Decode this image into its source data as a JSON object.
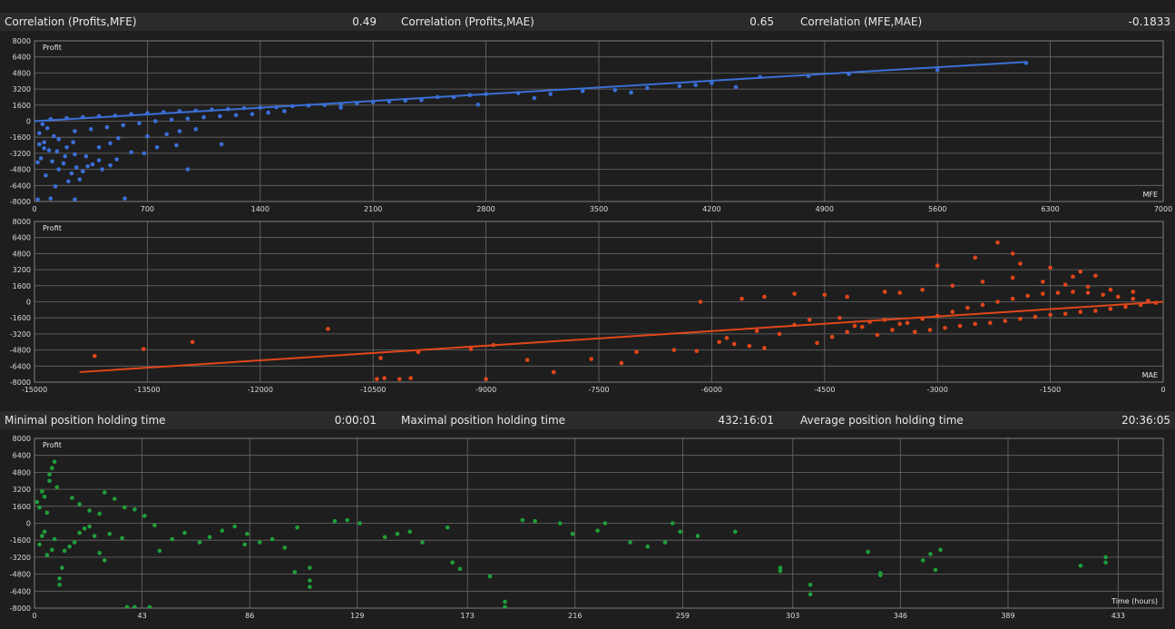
{
  "correlation_stats": [
    {
      "label": "Correlation (Profits,MFE)",
      "value": "0.49"
    },
    {
      "label": "Correlation (Profits,MAE)",
      "value": "0.65"
    },
    {
      "label": "Correlation (MFE,MAE)",
      "value": "-0.1833"
    }
  ],
  "holding_stats": [
    {
      "label": "Minimal position holding time",
      "value": "0:00:01"
    },
    {
      "label": "Maximal position holding time",
      "value": "432:16:01"
    },
    {
      "label": "Average position holding time",
      "value": "20:36:05"
    }
  ],
  "colors": {
    "mfe": "#3b6fd6",
    "mae": "#e0461a",
    "time": "#1f9e3a",
    "background": "#1e1e1e",
    "grid": "#6a6a6a"
  },
  "chart_data": [
    {
      "type": "scatter",
      "ylabel": "Profit",
      "xlabel": "MFE",
      "xlim": [
        0,
        7000
      ],
      "ylim": [
        -8000,
        8000
      ],
      "x_ticks": [
        0,
        700,
        1400,
        2100,
        2800,
        3500,
        4200,
        4900,
        5600,
        6300,
        7000
      ],
      "y_ticks": [
        -8000,
        -6400,
        -4800,
        -3200,
        -1600,
        0,
        1600,
        3200,
        4800,
        6400,
        8000
      ],
      "grid": true,
      "trend_line": [
        [
          0,
          0
        ],
        [
          6150,
          5900
        ]
      ],
      "points": [
        [
          50,
          -300
        ],
        [
          80,
          -700
        ],
        [
          30,
          -1200
        ],
        [
          120,
          -1500
        ],
        [
          60,
          -2100
        ],
        [
          150,
          -1800
        ],
        [
          200,
          -2600
        ],
        [
          90,
          -2900
        ],
        [
          250,
          -3300
        ],
        [
          320,
          -3500
        ],
        [
          40,
          -3700
        ],
        [
          110,
          -4000
        ],
        [
          180,
          -4200
        ],
        [
          260,
          -4600
        ],
        [
          360,
          -4300
        ],
        [
          150,
          -4800
        ],
        [
          230,
          -5200
        ],
        [
          300,
          -5000
        ],
        [
          420,
          -4800
        ],
        [
          510,
          -3800
        ],
        [
          600,
          -3100
        ],
        [
          680,
          -3200
        ],
        [
          760,
          -2600
        ],
        [
          880,
          -2400
        ],
        [
          950,
          -4800
        ],
        [
          1160,
          -2300
        ],
        [
          20,
          -4100
        ],
        [
          70,
          -5400
        ],
        [
          130,
          -6500
        ],
        [
          210,
          -6000
        ],
        [
          280,
          -5800
        ],
        [
          330,
          -4500
        ],
        [
          100,
          -7700
        ],
        [
          20,
          -7800
        ],
        [
          560,
          -7700
        ],
        [
          250,
          -7800
        ],
        [
          400,
          -2600
        ],
        [
          470,
          -2200
        ],
        [
          520,
          -1700
        ],
        [
          700,
          -1500
        ],
        [
          820,
          -1300
        ],
        [
          900,
          -1000
        ],
        [
          1000,
          -800
        ],
        [
          30,
          -2300
        ],
        [
          60,
          -2700
        ],
        [
          140,
          -3000
        ],
        [
          190,
          -3500
        ],
        [
          240,
          -2100
        ],
        [
          400,
          -3900
        ],
        [
          470,
          -4400
        ],
        [
          100,
          200
        ],
        [
          200,
          300
        ],
        [
          300,
          400
        ],
        [
          400,
          500
        ],
        [
          500,
          550
        ],
        [
          600,
          700
        ],
        [
          700,
          800
        ],
        [
          800,
          900
        ],
        [
          900,
          1000
        ],
        [
          1000,
          1050
        ],
        [
          1100,
          1150
        ],
        [
          1200,
          1200
        ],
        [
          1300,
          1300
        ],
        [
          1400,
          1350
        ],
        [
          1500,
          1400
        ],
        [
          1600,
          1500
        ],
        [
          1700,
          1550
        ],
        [
          1800,
          1600
        ],
        [
          1900,
          1700
        ],
        [
          2000,
          1800
        ],
        [
          2100,
          1900
        ],
        [
          2200,
          1950
        ],
        [
          2300,
          2050
        ],
        [
          2400,
          2100
        ],
        [
          2600,
          2400
        ],
        [
          2700,
          2600
        ],
        [
          2800,
          2700
        ],
        [
          3000,
          2800
        ],
        [
          3200,
          2700
        ],
        [
          3400,
          3000
        ],
        [
          3600,
          3100
        ],
        [
          3800,
          3300
        ],
        [
          4000,
          3500
        ],
        [
          4200,
          3800
        ],
        [
          4350,
          3400
        ],
        [
          4500,
          4400
        ],
        [
          4800,
          4500
        ],
        [
          5050,
          4700
        ],
        [
          5600,
          5100
        ],
        [
          6150,
          5800
        ],
        [
          1900,
          1350
        ],
        [
          2500,
          2400
        ],
        [
          2750,
          1650
        ],
        [
          3100,
          2300
        ],
        [
          3700,
          2850
        ],
        [
          4100,
          3600
        ],
        [
          250,
          -1000
        ],
        [
          350,
          -800
        ],
        [
          450,
          -600
        ],
        [
          550,
          -400
        ],
        [
          650,
          -200
        ],
        [
          750,
          0
        ],
        [
          850,
          150
        ],
        [
          950,
          250
        ],
        [
          1050,
          400
        ],
        [
          1150,
          500
        ],
        [
          1250,
          600
        ],
        [
          1350,
          700
        ],
        [
          1450,
          850
        ],
        [
          1550,
          1000
        ]
      ]
    },
    {
      "type": "scatter",
      "ylabel": "Profit",
      "xlabel": "MAE",
      "xlim": [
        -15000,
        0
      ],
      "ylim": [
        -8000,
        8000
      ],
      "x_ticks": [
        -15000,
        -13500,
        -12000,
        -10500,
        -9000,
        -7500,
        -6000,
        -4500,
        -3000,
        -1500,
        0
      ],
      "y_ticks": [
        -8000,
        -6400,
        -4800,
        -3200,
        -1600,
        0,
        1600,
        3200,
        4800,
        6400,
        8000
      ],
      "grid": true,
      "trend_line": [
        [
          -14400,
          -7000
        ],
        [
          0,
          0
        ]
      ],
      "points": [
        [
          -14200,
          -5400
        ],
        [
          -13550,
          -4700
        ],
        [
          -12900,
          -4000
        ],
        [
          -11100,
          -2700
        ],
        [
          -10450,
          -7700
        ],
        [
          -10350,
          -7600
        ],
        [
          -10150,
          -7700
        ],
        [
          -10000,
          -7600
        ],
        [
          -10400,
          -5600
        ],
        [
          -9900,
          -5000
        ],
        [
          -9200,
          -4700
        ],
        [
          -8900,
          -4300
        ],
        [
          -9000,
          -7700
        ],
        [
          -8450,
          -5800
        ],
        [
          -8100,
          -7000
        ],
        [
          -7600,
          -5700
        ],
        [
          -7200,
          -6100
        ],
        [
          -7000,
          -5000
        ],
        [
          -6500,
          -4800
        ],
        [
          -6200,
          -4900
        ],
        [
          -5900,
          -4000
        ],
        [
          -5700,
          -4200
        ],
        [
          -5500,
          -4400
        ],
        [
          -5300,
          -4600
        ],
        [
          -6150,
          0
        ],
        [
          -5600,
          300
        ],
        [
          -5300,
          500
        ],
        [
          -4900,
          800
        ],
        [
          -4500,
          700
        ],
        [
          -4200,
          500
        ],
        [
          -3700,
          1000
        ],
        [
          -3500,
          900
        ],
        [
          -3000,
          3600
        ],
        [
          -2500,
          4400
        ],
        [
          -2000,
          4800
        ],
        [
          -2200,
          5900
        ],
        [
          -1900,
          3800
        ],
        [
          -1500,
          3400
        ],
        [
          -1100,
          3000
        ],
        [
          -900,
          2600
        ],
        [
          -4600,
          -4100
        ],
        [
          -4400,
          -3500
        ],
        [
          -4200,
          -3000
        ],
        [
          -4000,
          -2500
        ],
        [
          -3800,
          -3300
        ],
        [
          -3600,
          -2800
        ],
        [
          -3400,
          -2100
        ],
        [
          -3200,
          -1700
        ],
        [
          -3000,
          -1400
        ],
        [
          -2800,
          -1000
        ],
        [
          -2600,
          -600
        ],
        [
          -2400,
          -300
        ],
        [
          -2200,
          0
        ],
        [
          -2000,
          300
        ],
        [
          -1800,
          600
        ],
        [
          -1600,
          800
        ],
        [
          -1400,
          900
        ],
        [
          -1200,
          1000
        ],
        [
          -1000,
          900
        ],
        [
          -800,
          700
        ],
        [
          -600,
          500
        ],
        [
          -400,
          300
        ],
        [
          -200,
          100
        ],
        [
          -100,
          -100
        ],
        [
          -300,
          -300
        ],
        [
          -500,
          -500
        ],
        [
          -700,
          -700
        ],
        [
          -900,
          -900
        ],
        [
          -1100,
          -1000
        ],
        [
          -1300,
          -1200
        ],
        [
          -1500,
          -1300
        ],
        [
          -1700,
          -1500
        ],
        [
          -1900,
          -1700
        ],
        [
          -2100,
          -1900
        ],
        [
          -2300,
          -2100
        ],
        [
          -2500,
          -2200
        ],
        [
          -2700,
          -2400
        ],
        [
          -2900,
          -2600
        ],
        [
          -3100,
          -2800
        ],
        [
          -3300,
          -3000
        ],
        [
          -3500,
          -2200
        ],
        [
          -3700,
          -1800
        ],
        [
          -3900,
          -2000
        ],
        [
          -4100,
          -2400
        ],
        [
          -4300,
          -1600
        ],
        [
          -4700,
          -1800
        ],
        [
          -4900,
          -2300
        ],
        [
          -5100,
          -3200
        ],
        [
          -5400,
          -2900
        ],
        [
          -5800,
          -3600
        ],
        [
          -2000,
          2400
        ],
        [
          -2400,
          2000
        ],
        [
          -2800,
          1600
        ],
        [
          -3200,
          1200
        ],
        [
          -1600,
          2000
        ],
        [
          -1300,
          1700
        ],
        [
          -1000,
          1500
        ],
        [
          -700,
          1200
        ],
        [
          -400,
          1000
        ],
        [
          -1200,
          2500
        ]
      ]
    },
    {
      "type": "scatter",
      "ylabel": "Profit",
      "xlabel": "Time (hours)",
      "xlim": [
        0,
        451
      ],
      "ylim": [
        -8000,
        8000
      ],
      "x_ticks": [
        0,
        43,
        86,
        129,
        173,
        216,
        259,
        303,
        346,
        389,
        433
      ],
      "y_ticks": [
        -8000,
        -6400,
        -4800,
        -3200,
        -1600,
        0,
        1600,
        3200,
        4800,
        6400,
        8000
      ],
      "grid": true,
      "points": [
        [
          1,
          2000
        ],
        [
          2,
          1500
        ],
        [
          3,
          3000
        ],
        [
          4,
          2500
        ],
        [
          5,
          1000
        ],
        [
          6,
          4000
        ],
        [
          7,
          5200
        ],
        [
          8,
          5800
        ],
        [
          6,
          4600
        ],
        [
          9,
          3400
        ],
        [
          2,
          -2000
        ],
        [
          3,
          -1200
        ],
        [
          4,
          -800
        ],
        [
          5,
          -3000
        ],
        [
          7,
          -2500
        ],
        [
          8,
          -1500
        ],
        [
          10,
          -5200
        ],
        [
          10,
          -5800
        ],
        [
          11,
          -4200
        ],
        [
          12,
          -2600
        ],
        [
          14,
          -2200
        ],
        [
          16,
          -1800
        ],
        [
          18,
          -900
        ],
        [
          20,
          -500
        ],
        [
          22,
          -300
        ],
        [
          24,
          -1200
        ],
        [
          26,
          -2800
        ],
        [
          28,
          -3500
        ],
        [
          30,
          -1000
        ],
        [
          35,
          -1400
        ],
        [
          15,
          2400
        ],
        [
          18,
          1800
        ],
        [
          22,
          1200
        ],
        [
          26,
          900
        ],
        [
          28,
          2900
        ],
        [
          32,
          2300
        ],
        [
          36,
          1500
        ],
        [
          40,
          1300
        ],
        [
          44,
          700
        ],
        [
          48,
          -200
        ],
        [
          37,
          -7900
        ],
        [
          40,
          -7900
        ],
        [
          46,
          -7900
        ],
        [
          50,
          -2600
        ],
        [
          55,
          -1500
        ],
        [
          60,
          -900
        ],
        [
          66,
          -1800
        ],
        [
          70,
          -1300
        ],
        [
          75,
          -700
        ],
        [
          80,
          -300
        ],
        [
          84,
          -2000
        ],
        [
          90,
          -1800
        ],
        [
          95,
          -1500
        ],
        [
          100,
          -2300
        ],
        [
          105,
          -400
        ],
        [
          110,
          -4200
        ],
        [
          110,
          -5400
        ],
        [
          110,
          -6000
        ],
        [
          104,
          -4600
        ],
        [
          85,
          -1000
        ],
        [
          120,
          200
        ],
        [
          125,
          300
        ],
        [
          130,
          0
        ],
        [
          140,
          -1300
        ],
        [
          145,
          -1000
        ],
        [
          150,
          -800
        ],
        [
          155,
          -1800
        ],
        [
          165,
          -400
        ],
        [
          167,
          -3700
        ],
        [
          170,
          -4300
        ],
        [
          182,
          -5000
        ],
        [
          188,
          -7400
        ],
        [
          188,
          -7900
        ],
        [
          195,
          300
        ],
        [
          200,
          200
        ],
        [
          210,
          0
        ],
        [
          215,
          -1000
        ],
        [
          225,
          -700
        ],
        [
          228,
          0
        ],
        [
          238,
          -1800
        ],
        [
          245,
          -2200
        ],
        [
          252,
          -1800
        ],
        [
          255,
          0
        ],
        [
          258,
          -800
        ],
        [
          265,
          -1200
        ],
        [
          280,
          -800
        ],
        [
          298,
          -4200
        ],
        [
          298,
          -4500
        ],
        [
          310,
          -5800
        ],
        [
          310,
          -6700
        ],
        [
          333,
          -2700
        ],
        [
          338,
          -4700
        ],
        [
          338,
          -4900
        ],
        [
          355,
          -3500
        ],
        [
          358,
          -2900
        ],
        [
          362,
          -2500
        ],
        [
          360,
          -4400
        ],
        [
          418,
          -4000
        ],
        [
          428,
          -3200
        ],
        [
          428,
          -3700
        ]
      ]
    }
  ]
}
